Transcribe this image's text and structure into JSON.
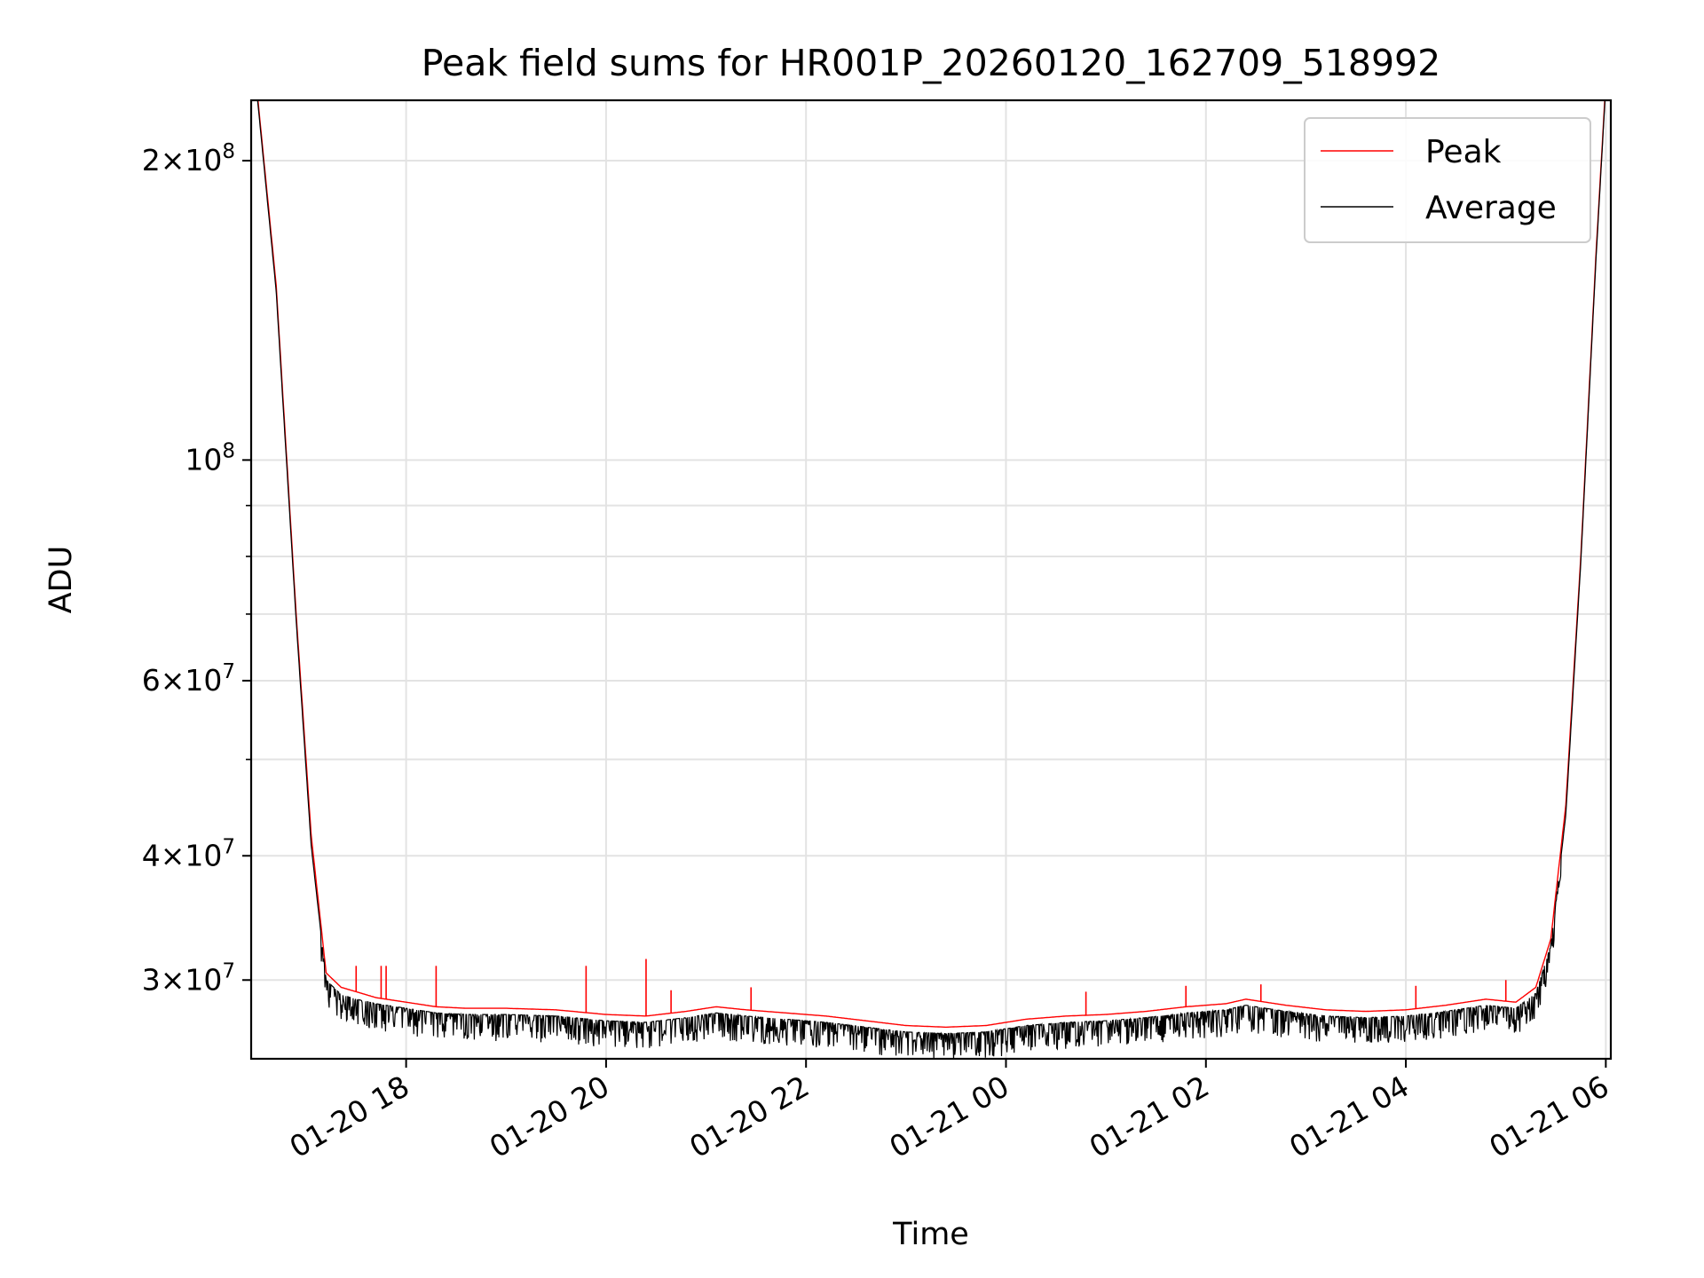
{
  "chart_data": {
    "type": "line",
    "title": "Peak field sums for HR001P_20260120_162709_518992",
    "xlabel": "Time",
    "ylabel": "ADU",
    "y_scale": "log",
    "ylim": [
      25000000,
      230000000
    ],
    "xlim_hours": [
      16.45,
      30.05
    ],
    "grid": true,
    "legend_position": "top-right",
    "x_ticks": [
      {
        "hour": 18,
        "label": "01-20 18"
      },
      {
        "hour": 20,
        "label": "01-20 20"
      },
      {
        "hour": 22,
        "label": "01-20 22"
      },
      {
        "hour": 24,
        "label": "01-21 00"
      },
      {
        "hour": 26,
        "label": "01-21 02"
      },
      {
        "hour": 28,
        "label": "01-21 04"
      },
      {
        "hour": 30,
        "label": "01-21 06"
      }
    ],
    "y_major_ticks": [
      {
        "value": 30000000,
        "base": "3×10",
        "exp": "7"
      },
      {
        "value": 40000000,
        "base": "4×10",
        "exp": "7"
      },
      {
        "value": 60000000,
        "base": "6×10",
        "exp": "7"
      },
      {
        "value": 100000000,
        "base": "10",
        "exp": "8"
      },
      {
        "value": 200000000,
        "base": "2×10",
        "exp": "8"
      }
    ],
    "y_minor_ticks": [
      50000000,
      70000000,
      80000000,
      90000000
    ],
    "series": [
      {
        "name": "Peak",
        "color": "#ff0000",
        "x_hours": [
          16.5,
          16.7,
          16.9,
          17.05,
          17.2,
          17.35,
          17.5,
          17.7,
          17.9,
          18.1,
          18.3,
          18.6,
          19.0,
          19.5,
          20.0,
          20.4,
          20.8,
          21.1,
          21.4,
          21.8,
          22.2,
          22.6,
          23.0,
          23.4,
          23.8,
          24.2,
          24.6,
          25.0,
          25.4,
          25.8,
          26.2,
          26.4,
          26.8,
          27.2,
          27.6,
          28.0,
          28.4,
          28.8,
          29.1,
          29.3,
          29.45,
          29.6,
          29.75,
          29.9,
          30.0
        ],
        "values": [
          240000000,
          150000000,
          70000000,
          42000000,
          30500000,
          29500000,
          29200000,
          28800000,
          28600000,
          28400000,
          28200000,
          28100000,
          28100000,
          28000000,
          27700000,
          27600000,
          27900000,
          28200000,
          28000000,
          27800000,
          27600000,
          27300000,
          27000000,
          26900000,
          27000000,
          27400000,
          27600000,
          27700000,
          27900000,
          28200000,
          28400000,
          28700000,
          28300000,
          28000000,
          27900000,
          28000000,
          28300000,
          28700000,
          28500000,
          29500000,
          33000000,
          45000000,
          80000000,
          160000000,
          240000000
        ]
      },
      {
        "name": "Average",
        "color": "#000000",
        "x_hours": [
          16.5,
          16.7,
          16.9,
          17.05,
          17.2,
          17.35,
          17.5,
          17.7,
          17.9,
          18.1,
          18.3,
          18.6,
          19.0,
          19.5,
          20.0,
          20.4,
          20.8,
          21.1,
          21.4,
          21.8,
          22.2,
          22.6,
          23.0,
          23.4,
          23.8,
          24.2,
          24.6,
          25.0,
          25.4,
          25.8,
          26.2,
          26.4,
          26.8,
          27.2,
          27.6,
          28.0,
          28.4,
          28.8,
          29.1,
          29.3,
          29.45,
          29.6,
          29.75,
          29.9,
          30.0
        ],
        "values": [
          238000000,
          148000000,
          69000000,
          41000000,
          30000000,
          29000000,
          28700000,
          28400000,
          28200000,
          28000000,
          27800000,
          27700000,
          27700000,
          27600000,
          27300000,
          27200000,
          27500000,
          27800000,
          27600000,
          27400000,
          27200000,
          26900000,
          26600000,
          26500000,
          26600000,
          27000000,
          27200000,
          27300000,
          27500000,
          27800000,
          28000000,
          28300000,
          27900000,
          27600000,
          27500000,
          27600000,
          27900000,
          28300000,
          28100000,
          29100000,
          32500000,
          44000000,
          79000000,
          158000000,
          238000000
        ]
      }
    ],
    "peak_spikes": [
      {
        "hour": 17.5,
        "value": 31000000
      },
      {
        "hour": 17.75,
        "value": 31000000
      },
      {
        "hour": 17.8,
        "value": 31000000
      },
      {
        "hour": 18.3,
        "value": 31000000
      },
      {
        "hour": 19.8,
        "value": 31000000
      },
      {
        "hour": 20.4,
        "value": 31500000
      },
      {
        "hour": 20.65,
        "value": 29300000
      },
      {
        "hour": 21.45,
        "value": 29500000
      },
      {
        "hour": 24.8,
        "value": 29200000
      },
      {
        "hour": 25.8,
        "value": 29600000
      },
      {
        "hour": 26.55,
        "value": 29700000
      },
      {
        "hour": 28.1,
        "value": 29600000
      },
      {
        "hour": 29.0,
        "value": 30000000
      }
    ]
  }
}
